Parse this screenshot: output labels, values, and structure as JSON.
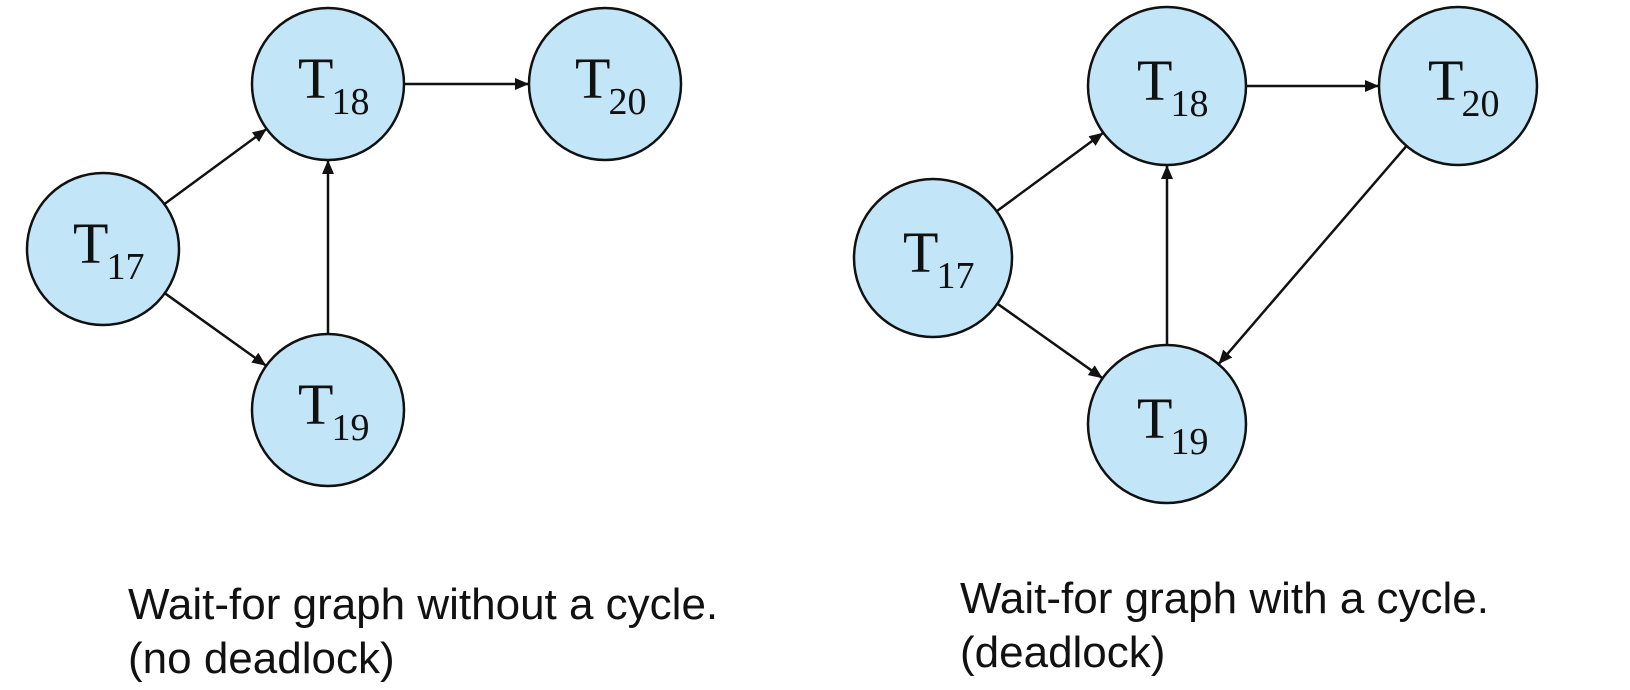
{
  "colors": {
    "node_fill": "#c2e6f7",
    "stroke": "#111111"
  },
  "graphs": [
    {
      "caption": {
        "line1": "Wait-for graph without a cycle.",
        "line2": "(no deadlock)"
      },
      "nodes": [
        {
          "id": "T17",
          "label": "T",
          "sub": "17"
        },
        {
          "id": "T18",
          "label": "T",
          "sub": "18"
        },
        {
          "id": "T19",
          "label": "T",
          "sub": "19"
        },
        {
          "id": "T20",
          "label": "T",
          "sub": "20"
        }
      ],
      "edges": [
        {
          "from": "T17",
          "to": "T18"
        },
        {
          "from": "T17",
          "to": "T19"
        },
        {
          "from": "T19",
          "to": "T18"
        },
        {
          "from": "T18",
          "to": "T20"
        }
      ]
    },
    {
      "caption": {
        "line1": "Wait-for graph with a cycle.",
        "line2": "(deadlock)"
      },
      "nodes": [
        {
          "id": "T17",
          "label": "T",
          "sub": "17"
        },
        {
          "id": "T18",
          "label": "T",
          "sub": "18"
        },
        {
          "id": "T19",
          "label": "T",
          "sub": "19"
        },
        {
          "id": "T20",
          "label": "T",
          "sub": "20"
        }
      ],
      "edges": [
        {
          "from": "T17",
          "to": "T18"
        },
        {
          "from": "T17",
          "to": "T19"
        },
        {
          "from": "T19",
          "to": "T18"
        },
        {
          "from": "T18",
          "to": "T20"
        },
        {
          "from": "T20",
          "to": "T19"
        }
      ]
    }
  ]
}
